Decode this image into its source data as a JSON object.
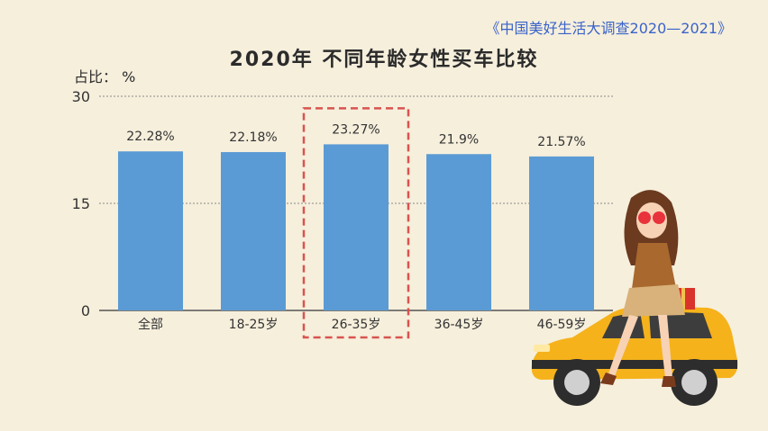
{
  "source": "《中国美好生活大调查2020—2021》",
  "unit_label": "占比： %",
  "chart_data": {
    "type": "bar",
    "title": "2020年 不同年龄女性买车比较",
    "categories": [
      "全部",
      "18-25岁",
      "26-35岁",
      "36-45岁",
      "46-59岁"
    ],
    "values": [
      22.28,
      22.18,
      23.27,
      21.9,
      21.57
    ],
    "data_labels": [
      "22.28%",
      "22.18%",
      "23.27%",
      "21.9%",
      "21.57%"
    ],
    "ylim": [
      0,
      30
    ],
    "yticks": [
      "0",
      "15",
      "30"
    ],
    "highlighted_category": "26-35岁",
    "grid": true,
    "bar_color": "#5b9bd5",
    "highlight_color": "#d9534f",
    "gridline_color": "#888888"
  }
}
